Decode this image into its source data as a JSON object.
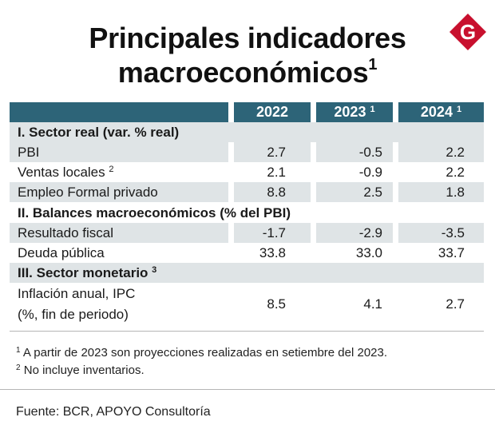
{
  "title_line1": "Principales indicadores",
  "title_line2": "macroeconómicos",
  "title_sup": "1",
  "logo_letter": "G",
  "colors": {
    "header": "#2d6478",
    "shade": "#dfe4e6",
    "logo": "#c8102e"
  },
  "headers": [
    {
      "label": "2022",
      "sup": ""
    },
    {
      "label": "2023",
      "sup": "1"
    },
    {
      "label": "2024",
      "sup": "1"
    }
  ],
  "sections": [
    {
      "title": "I. Sector real (var. % real)",
      "sup": ""
    },
    {
      "title": "II. Balances macroeconómicos (% del PBI)",
      "sup": ""
    },
    {
      "title": "III. Sector monetario",
      "sup": "3"
    }
  ],
  "rows": [
    {
      "label": "PBI",
      "sup": "",
      "values": [
        "2.7",
        "-0.5",
        "2.2"
      ]
    },
    {
      "label": "Ventas locales",
      "sup": "2",
      "values": [
        "2.1",
        "-0.9",
        "2.2"
      ]
    },
    {
      "label": "Empleo Formal privado",
      "sup": "",
      "values": [
        "8.8",
        "2.5",
        "1.8"
      ]
    },
    {
      "label": "Resultado fiscal",
      "sup": "",
      "values": [
        "-1.7",
        "-2.9",
        "-3.5"
      ]
    },
    {
      "label": "Deuda pública",
      "sup": "",
      "values": [
        "33.8",
        "33.0",
        "33.7"
      ]
    },
    {
      "label_line1": "Inflación anual, IPC",
      "label_line2": "(%, fin de periodo)",
      "values": [
        "8.5",
        "4.1",
        "2.7"
      ]
    }
  ],
  "notes": [
    {
      "sup": "1",
      "text": "A partir de 2023 son proyecciones realizadas en setiembre del 2023."
    },
    {
      "sup": "2",
      "text": "No incluye inventarios."
    }
  ],
  "source": "Fuente: BCR, APOYO Consultoría"
}
